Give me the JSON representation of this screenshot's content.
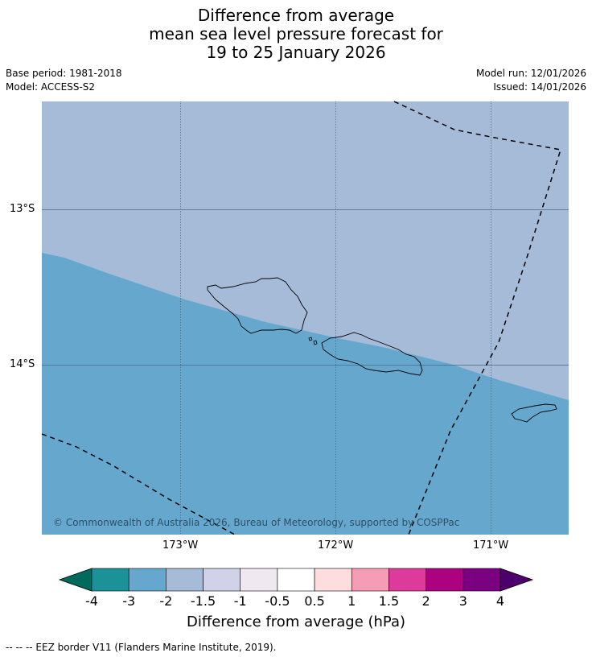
{
  "title": {
    "line1": "Difference from average",
    "line2": "mean sea level pressure forecast for",
    "line3": "19 to 25 January 2026"
  },
  "meta": {
    "base_period": "Base period: 1981-2018",
    "model": "Model: ACCESS-S2",
    "model_run": "Model run: 12/01/2026",
    "issued": "Issued: 14/01/2026"
  },
  "map": {
    "latitude_labels": [
      "13°S",
      "14°S"
    ],
    "longitude_labels": [
      "173°W",
      "172°W",
      "171°W"
    ],
    "copyright": "© Commonwealth of Australia 2026, Bureau of Meteorology, supported by COSPPac",
    "colors": {
      "band_minus2_to_minus1_5": "#a6bbd8",
      "band_minus3_to_minus2": "#66a8cd",
      "coastline": "#000000",
      "gridline": "#4a6a85"
    }
  },
  "colorbar": {
    "title": "Difference from average (hPa)",
    "tick_labels": [
      "-4",
      "-3",
      "-2",
      "-1.5",
      "-1",
      "-0.5",
      "0.5",
      "1",
      "1.5",
      "2",
      "3",
      "4"
    ],
    "colors": [
      "#006b5d",
      "#1b9298",
      "#66a8cd",
      "#a6bbd8",
      "#d1d1e8",
      "#efe8f1",
      "#ffffff",
      "#fdddde",
      "#f59cb6",
      "#dd3b9c",
      "#ac0280",
      "#7a0180",
      "#4d006b"
    ]
  },
  "footnote": "--  --  -- EEZ border V11 (Flanders Marine Institute, 2019)."
}
